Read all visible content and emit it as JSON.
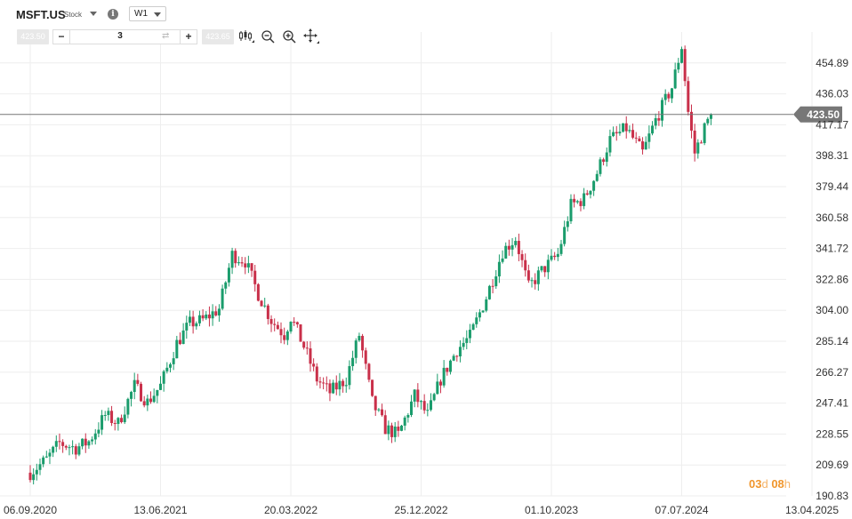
{
  "header": {
    "symbol": "MSFT.US",
    "symbol_type": "Stock",
    "info_glyph": "i",
    "timeframe": "W1",
    "sell_price": "423.50",
    "buy_price": "423.65",
    "quantity": "3",
    "minus_label": "−",
    "plus_label": "+",
    "swap_glyph": "⇄"
  },
  "timer": {
    "days": "03",
    "d_label": "d",
    "hours": "08",
    "h_label": "h"
  },
  "colors": {
    "up": "#1a9c6c",
    "down": "#c9304a",
    "axis_text": "#333333",
    "price_line": "#777777",
    "price_tag": "#777777",
    "timer": "#f0962d"
  },
  "chart_data": {
    "type": "candlestick",
    "symbol": "MSFT.US",
    "timeframe": "W1",
    "current_price": 423.5,
    "current_price_label": "423.50",
    "y_ticks": [
      "454.89",
      "436.03",
      "417.17",
      "398.31",
      "379.44",
      "360.58",
      "341.72",
      "322.86",
      "304.00",
      "285.14",
      "266.27",
      "247.41",
      "228.55",
      "209.69",
      "190.83"
    ],
    "ylim": [
      190.83,
      473.75
    ],
    "x_ticks": [
      "06.09.2020",
      "13.06.2021",
      "20.03.2022",
      "25.12.2022",
      "01.10.2023",
      "07.07.2024",
      "13.04.2025"
    ],
    "x_start": "2020-09-06",
    "x_end": "2025-04-13",
    "last_candle": "2024-09-08",
    "close_path": [
      [
        "2020-09-06",
        205
      ],
      [
        "2020-10-11",
        213
      ],
      [
        "2020-11-08",
        223
      ],
      [
        "2020-12-13",
        220
      ],
      [
        "2021-01-10",
        224
      ],
      [
        "2021-02-14",
        240
      ],
      [
        "2021-03-14",
        235
      ],
      [
        "2021-04-18",
        258
      ],
      [
        "2021-05-16",
        248
      ],
      [
        "2021-06-13",
        258
      ],
      [
        "2021-07-18",
        284
      ],
      [
        "2021-08-15",
        296
      ],
      [
        "2021-09-12",
        298
      ],
      [
        "2021-10-17",
        305
      ],
      [
        "2021-11-14",
        338
      ],
      [
        "2021-12-12",
        334
      ],
      [
        "2022-01-09",
        314
      ],
      [
        "2022-02-06",
        298
      ],
      [
        "2022-03-06",
        289
      ],
      [
        "2022-03-20",
        300
      ],
      [
        "2022-04-17",
        282
      ],
      [
        "2022-05-15",
        262
      ],
      [
        "2022-06-12",
        254
      ],
      [
        "2022-07-17",
        262
      ],
      [
        "2022-08-14",
        289
      ],
      [
        "2022-09-11",
        248
      ],
      [
        "2022-10-09",
        232
      ],
      [
        "2022-11-06",
        228
      ],
      [
        "2022-12-11",
        252
      ],
      [
        "2023-01-08",
        240
      ],
      [
        "2023-02-05",
        262
      ],
      [
        "2023-03-12",
        280
      ],
      [
        "2023-04-09",
        288
      ],
      [
        "2023-05-14",
        312
      ],
      [
        "2023-06-18",
        340
      ],
      [
        "2023-07-16",
        348
      ],
      [
        "2023-08-13",
        318
      ],
      [
        "2023-09-10",
        328
      ],
      [
        "2023-10-15",
        338
      ],
      [
        "2023-11-12",
        368
      ],
      [
        "2023-12-10",
        372
      ],
      [
        "2024-01-07",
        388
      ],
      [
        "2024-02-04",
        408
      ],
      [
        "2024-03-10",
        415
      ],
      [
        "2024-04-14",
        400
      ],
      [
        "2024-05-12",
        420
      ],
      [
        "2024-06-16",
        440
      ],
      [
        "2024-07-07",
        465
      ],
      [
        "2024-07-21",
        425
      ],
      [
        "2024-08-04",
        400
      ],
      [
        "2024-08-25",
        415
      ],
      [
        "2024-09-08",
        423.5
      ]
    ]
  }
}
